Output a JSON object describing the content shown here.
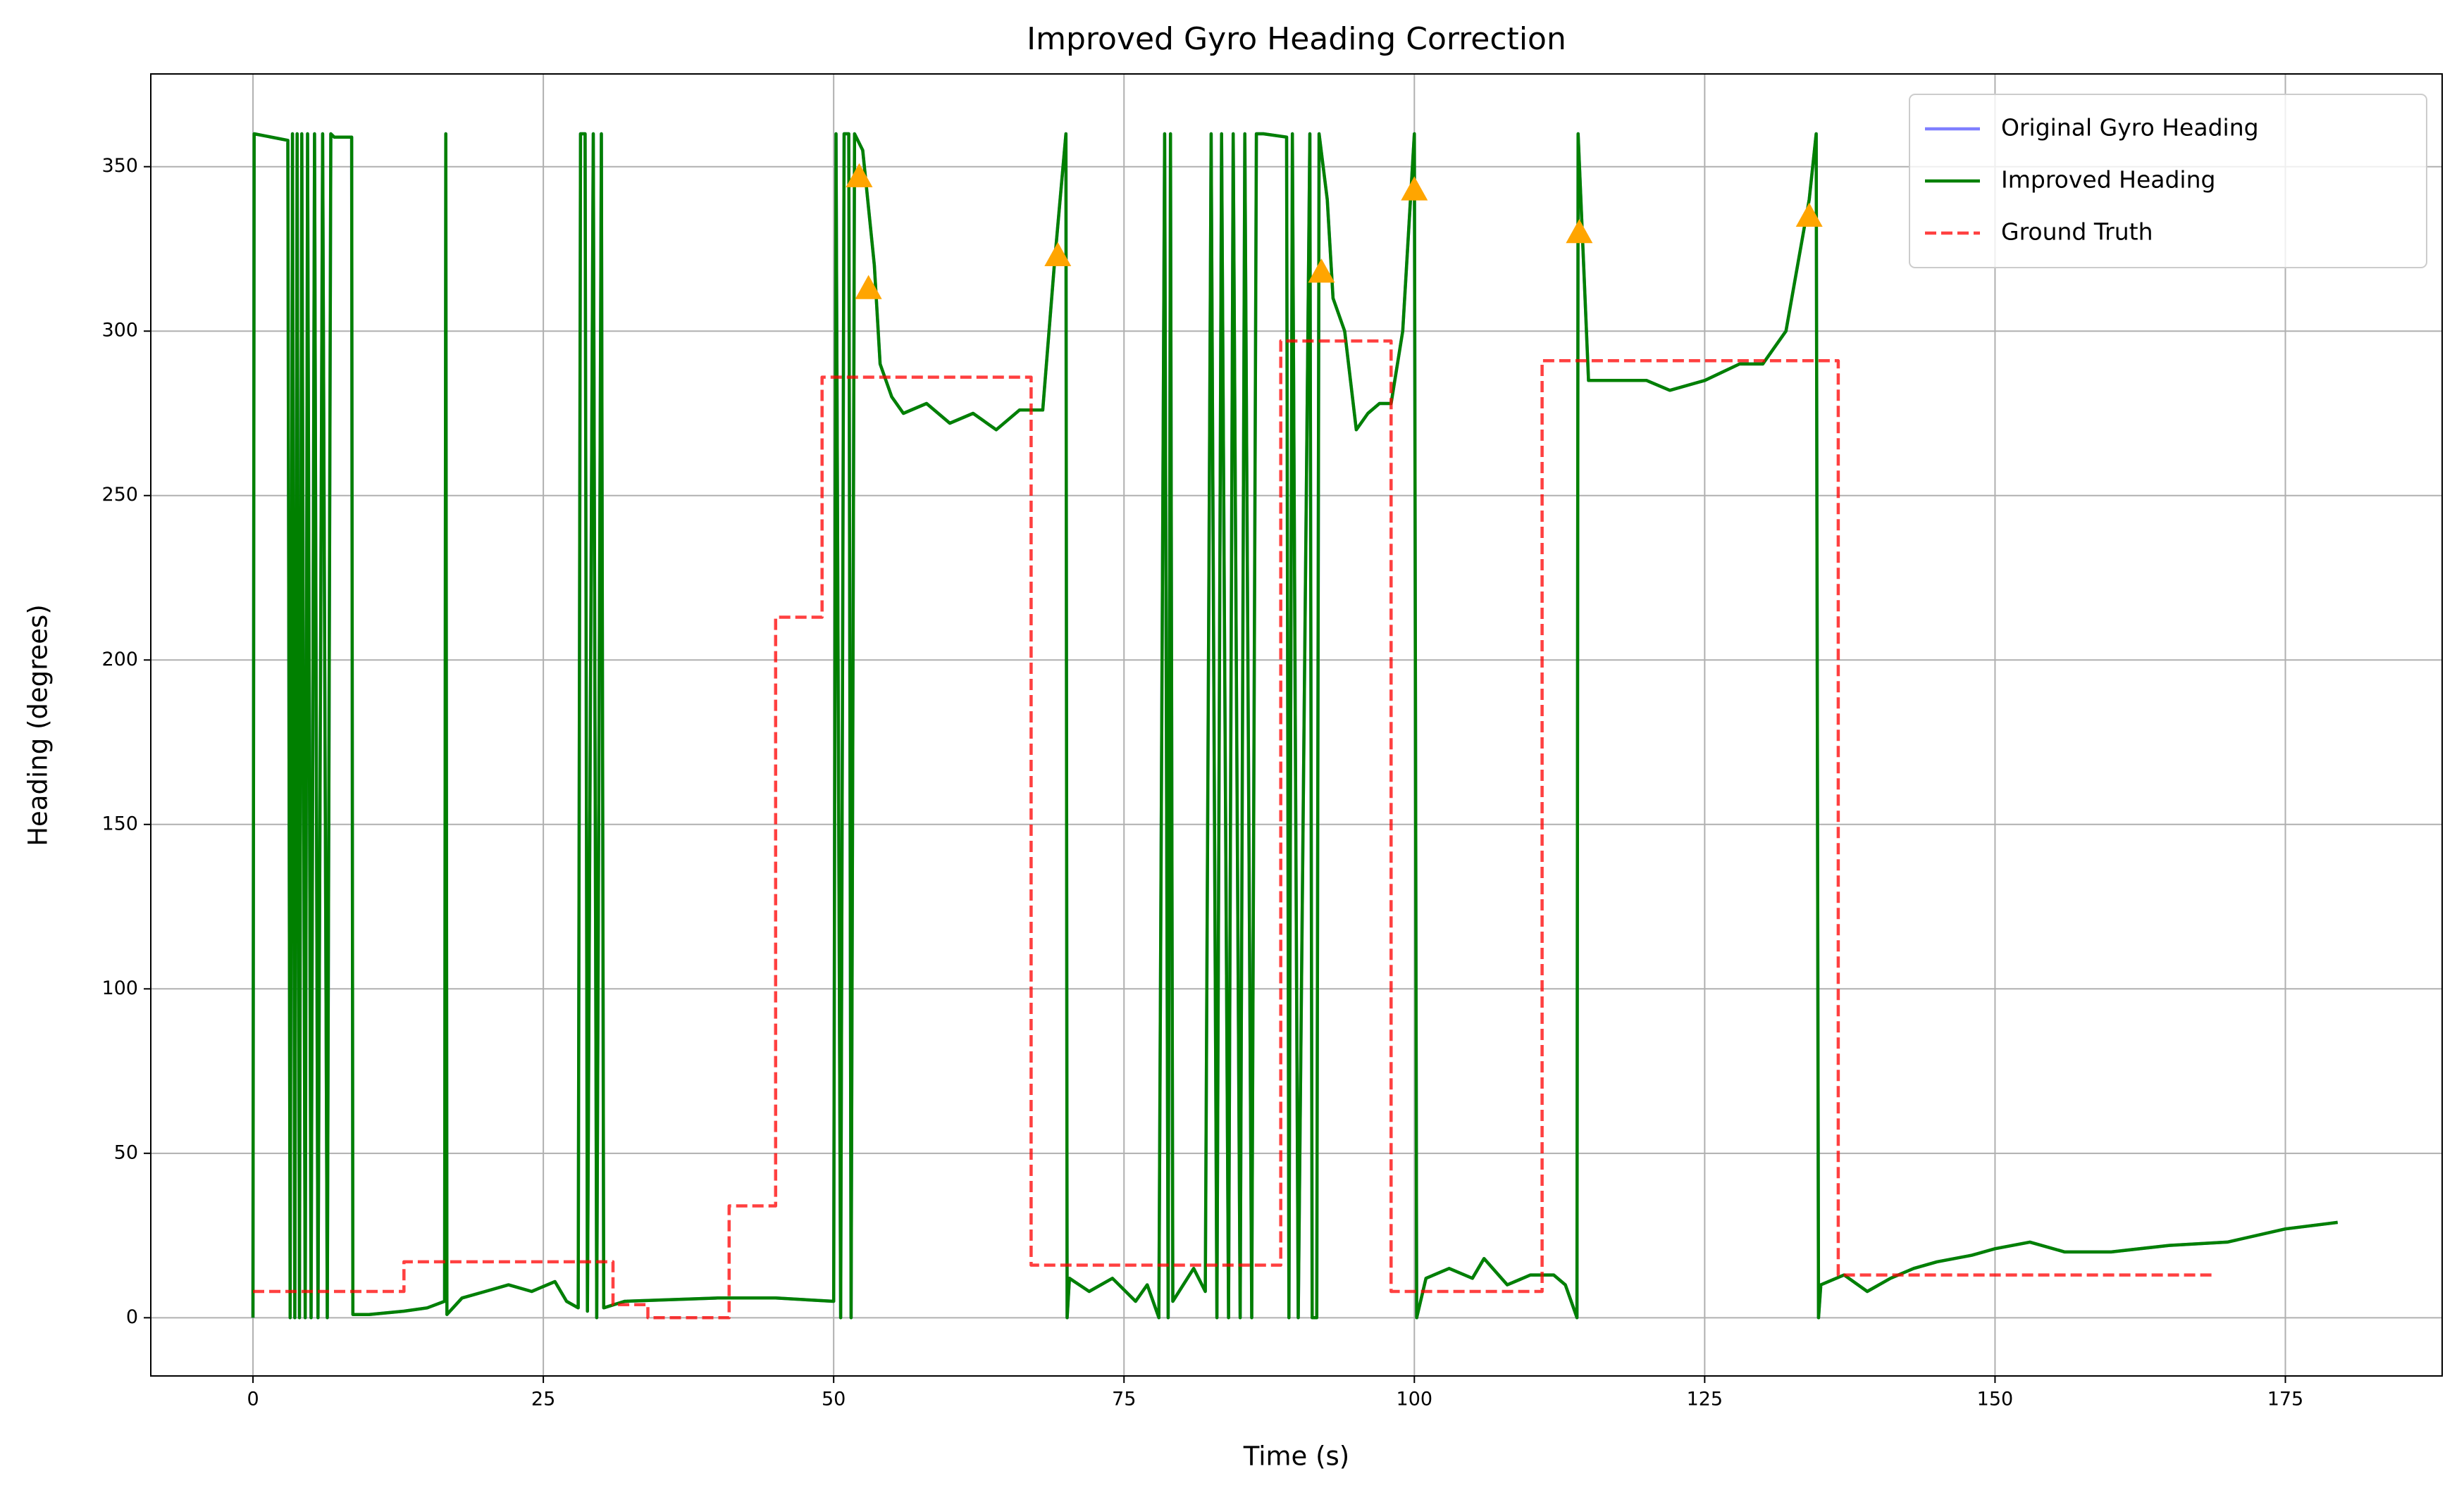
{
  "chart_data": {
    "type": "line",
    "title": "Improved Gyro Heading Correction",
    "xlabel": "Time (s)",
    "ylabel": "Heading (degrees)",
    "xlim": [
      -8.8,
      188.5
    ],
    "ylim": [
      -17.7,
      378.2
    ],
    "xticks": [
      0,
      25,
      50,
      75,
      100,
      125,
      150,
      175
    ],
    "yticks": [
      0,
      50,
      100,
      150,
      200,
      250,
      300,
      350
    ],
    "grid": true,
    "legend": "upper right",
    "series": [
      {
        "name": "Original Gyro Heading",
        "color": "#0000ff",
        "alpha": 0.5,
        "linestyle": "solid",
        "x": [
          0,
          0.1,
          3,
          3.2,
          3.4,
          3.6,
          3.8,
          4,
          4.2,
          4.5,
          4.7,
          5,
          5.3,
          5.6,
          6,
          6.4,
          6.7,
          7,
          8.5,
          8.6,
          10,
          13,
          15,
          16.5,
          16.6,
          16.7,
          18,
          20,
          22,
          24,
          26,
          27,
          28,
          28.2,
          28.6,
          28.8,
          29.3,
          29.6,
          30,
          30.2,
          32,
          40,
          45,
          50,
          50.2,
          50.6,
          50.9,
          51.3,
          51.5,
          51.8,
          52.5,
          53.5,
          54,
          55,
          56,
          58,
          60,
          62,
          64,
          66,
          68,
          69,
          70,
          70.1,
          70.3,
          72,
          74,
          76,
          77,
          78,
          78.5,
          78.8,
          79,
          79.2,
          81,
          82,
          82.5,
          83,
          83.4,
          84,
          84.4,
          85,
          85.4,
          86,
          86.4,
          87,
          89,
          89.2,
          89.5,
          90,
          91,
          91.2,
          91.6,
          91.8,
          92.5,
          93,
          94,
          95,
          96,
          97,
          98,
          99,
          100,
          100.2,
          101,
          103,
          105,
          106,
          108,
          110,
          112,
          113,
          114,
          114.1,
          115,
          117,
          120,
          122,
          125,
          128,
          130,
          132,
          134,
          134.6,
          134.8,
          135,
          137,
          139,
          141,
          143,
          145,
          148,
          150,
          153,
          156,
          160,
          165,
          170,
          175,
          179.5
        ],
        "values": [
          0,
          360,
          358,
          0,
          360,
          0,
          360,
          0,
          360,
          0,
          360,
          0,
          360,
          0,
          360,
          0,
          360,
          359,
          359,
          1,
          1,
          2,
          3,
          5,
          360,
          1,
          6,
          8,
          10,
          8,
          11,
          5,
          3,
          360,
          360,
          2,
          360,
          0,
          360,
          3,
          5,
          6,
          6,
          5,
          360,
          0,
          360,
          360,
          0,
          360,
          355,
          320,
          290,
          280,
          275,
          278,
          272,
          275,
          270,
          276,
          276,
          320,
          360,
          0,
          12,
          8,
          12,
          5,
          10,
          0,
          360,
          0,
          360,
          5,
          15,
          8,
          360,
          0,
          360,
          0,
          360,
          0,
          360,
          0,
          360,
          360,
          359,
          0,
          360,
          0,
          360,
          0,
          0,
          360,
          340,
          310,
          300,
          270,
          275,
          278,
          278,
          300,
          360,
          0,
          12,
          15,
          12,
          18,
          10,
          13,
          13,
          10,
          0,
          360,
          285,
          285,
          285,
          282,
          285,
          290,
          290,
          300,
          340,
          360,
          0,
          10,
          13,
          8,
          12,
          15,
          17,
          19,
          21,
          23,
          20,
          20,
          22,
          23,
          27,
          29
        ]
      },
      {
        "name": "Improved Heading",
        "color": "#008000",
        "alpha": 1,
        "linestyle": "solid",
        "x": [
          0,
          0.1,
          3,
          3.2,
          3.4,
          3.6,
          3.8,
          4,
          4.2,
          4.5,
          4.7,
          5,
          5.3,
          5.6,
          6,
          6.4,
          6.7,
          7,
          8.5,
          8.6,
          10,
          13,
          15,
          16.5,
          16.6,
          16.7,
          18,
          20,
          22,
          24,
          26,
          27,
          28,
          28.2,
          28.6,
          28.8,
          29.3,
          29.6,
          30,
          30.2,
          32,
          40,
          45,
          50,
          50.2,
          50.6,
          50.9,
          51.3,
          51.5,
          51.8,
          52.5,
          53.5,
          54,
          55,
          56,
          58,
          60,
          62,
          64,
          66,
          68,
          69,
          70,
          70.1,
          70.3,
          72,
          74,
          76,
          77,
          78,
          78.5,
          78.8,
          79,
          79.2,
          81,
          82,
          82.5,
          83,
          83.4,
          84,
          84.4,
          85,
          85.4,
          86,
          86.4,
          87,
          89,
          89.2,
          89.5,
          90,
          91,
          91.2,
          91.6,
          91.8,
          92.5,
          93,
          94,
          95,
          96,
          97,
          98,
          99,
          100,
          100.2,
          101,
          103,
          105,
          106,
          108,
          110,
          112,
          113,
          114,
          114.1,
          115,
          117,
          120,
          122,
          125,
          128,
          130,
          132,
          134,
          134.6,
          134.8,
          135,
          137,
          139,
          141,
          143,
          145,
          148,
          150,
          153,
          156,
          160,
          165,
          170,
          175,
          179.5
        ],
        "values": [
          0,
          360,
          358,
          0,
          360,
          0,
          360,
          0,
          360,
          0,
          360,
          0,
          360,
          0,
          360,
          0,
          360,
          359,
          359,
          1,
          1,
          2,
          3,
          5,
          360,
          1,
          6,
          8,
          10,
          8,
          11,
          5,
          3,
          360,
          360,
          2,
          360,
          0,
          360,
          3,
          5,
          6,
          6,
          5,
          360,
          0,
          360,
          360,
          0,
          360,
          355,
          320,
          290,
          280,
          275,
          278,
          272,
          275,
          270,
          276,
          276,
          320,
          360,
          0,
          12,
          8,
          12,
          5,
          10,
          0,
          360,
          0,
          360,
          5,
          15,
          8,
          360,
          0,
          360,
          0,
          360,
          0,
          360,
          0,
          360,
          360,
          359,
          0,
          360,
          0,
          360,
          0,
          0,
          360,
          340,
          310,
          300,
          270,
          275,
          278,
          278,
          300,
          360,
          0,
          12,
          15,
          12,
          18,
          10,
          13,
          13,
          10,
          0,
          360,
          285,
          285,
          285,
          282,
          285,
          290,
          290,
          300,
          340,
          360,
          0,
          10,
          13,
          8,
          12,
          15,
          17,
          19,
          21,
          23,
          20,
          20,
          22,
          23,
          27,
          29
        ]
      },
      {
        "name": "Ground Truth",
        "color": "#ff0000",
        "alpha": 0.75,
        "linestyle": "dashed",
        "x": [
          0,
          13,
          13,
          31,
          31,
          34,
          34,
          41,
          41,
          45,
          45,
          49,
          49,
          67,
          67,
          88.5,
          88.5,
          98,
          98,
          111,
          111,
          136.5,
          136.5,
          169
        ],
        "values": [
          8,
          8,
          17,
          17,
          4,
          4,
          0,
          0,
          34,
          34,
          213,
          213,
          286,
          286,
          16,
          16,
          297,
          297,
          8,
          8,
          291,
          291,
          13,
          13
        ]
      },
      {
        "color": "#ffa500",
        "marker": "^",
        "x": [
          52.2,
          53,
          69.3,
          92,
          100,
          114.2,
          134
        ],
        "values": [
          347,
          313,
          323,
          318,
          343,
          330,
          335
        ]
      }
    ]
  }
}
